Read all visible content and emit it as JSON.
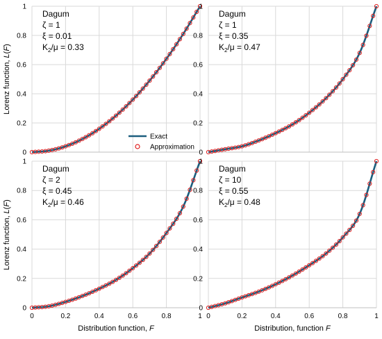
{
  "colors": {
    "exact": "#1b5e7e",
    "approx": "#e02020",
    "grid": "#d9d9d9"
  },
  "legend": {
    "exact": "Exact",
    "approx": "Approximation",
    "placement": "bottom-right of top-left panel"
  },
  "axes": {
    "ylabel": "Lorenz function, L(F)",
    "xlabel_left": "Distribution function, F",
    "xlabel_right": "Distribution, function F",
    "xticks": [
      "0",
      "0.2",
      "0.4",
      "0.6",
      "0.8",
      "1"
    ],
    "yticks": [
      "0",
      "0.2",
      "0.4",
      "0.6",
      "0.8",
      "1"
    ],
    "xlim": [
      0,
      1
    ],
    "ylim": [
      0,
      1
    ]
  },
  "chart_data": [
    {
      "type": "line",
      "title": "Dagum",
      "annotations": [
        "Dagum",
        "ζ = 1",
        "ξ = 0.01",
        "K2/μ = 0.33"
      ],
      "zeta": 1,
      "xi": 0.01,
      "series": [
        {
          "name": "Exact",
          "x": [
            0,
            0.1,
            0.2,
            0.3,
            0.4,
            0.5,
            0.6,
            0.7,
            0.8,
            0.9,
            1
          ],
          "y": [
            0,
            0.01,
            0.04,
            0.09,
            0.16,
            0.25,
            0.36,
            0.49,
            0.64,
            0.81,
            1
          ]
        },
        {
          "name": "Approximation",
          "x": [
            0,
            0.1,
            0.2,
            0.3,
            0.4,
            0.5,
            0.6,
            0.7,
            0.8,
            0.9,
            1
          ],
          "y": [
            0,
            0.01,
            0.04,
            0.09,
            0.16,
            0.25,
            0.36,
            0.49,
            0.64,
            0.81,
            1
          ]
        }
      ]
    },
    {
      "type": "line",
      "title": "Dagum",
      "annotations": [
        "Dagum",
        "ζ = 1",
        "ξ = 0.35",
        "K2/μ = 0.47"
      ],
      "zeta": 1,
      "xi": 0.35,
      "series": [
        {
          "name": "Exact",
          "x": [
            0,
            0.1,
            0.2,
            0.3,
            0.4,
            0.5,
            0.6,
            0.7,
            0.8,
            0.9,
            1
          ],
          "y": [
            0,
            0.02,
            0.04,
            0.08,
            0.13,
            0.19,
            0.27,
            0.37,
            0.5,
            0.68,
            1
          ]
        },
        {
          "name": "Approximation",
          "x": [
            0,
            0.1,
            0.2,
            0.3,
            0.4,
            0.5,
            0.6,
            0.7,
            0.8,
            0.9,
            1
          ],
          "y": [
            0,
            0.02,
            0.04,
            0.08,
            0.13,
            0.19,
            0.27,
            0.37,
            0.5,
            0.68,
            1
          ]
        }
      ]
    },
    {
      "type": "line",
      "title": "Dagum",
      "annotations": [
        "Dagum",
        "ζ = 2",
        "ξ = 0.45",
        "K2/μ = 0.46"
      ],
      "zeta": 2,
      "xi": 0.45,
      "series": [
        {
          "name": "Exact",
          "x": [
            0,
            0.1,
            0.2,
            0.3,
            0.4,
            0.5,
            0.6,
            0.7,
            0.8,
            0.9,
            1
          ],
          "y": [
            0,
            0.01,
            0.04,
            0.08,
            0.13,
            0.19,
            0.27,
            0.37,
            0.51,
            0.69,
            1
          ]
        },
        {
          "name": "Approximation",
          "x": [
            0,
            0.1,
            0.2,
            0.3,
            0.4,
            0.5,
            0.6,
            0.7,
            0.8,
            0.9,
            1
          ],
          "y": [
            0,
            0.01,
            0.04,
            0.08,
            0.13,
            0.19,
            0.27,
            0.37,
            0.51,
            0.69,
            1
          ]
        }
      ]
    },
    {
      "type": "line",
      "title": "Dagum",
      "annotations": [
        "Dagum",
        "ζ = 10",
        "ξ = 0.55",
        "K2/μ = 0.48"
      ],
      "zeta": 10,
      "xi": 0.55,
      "series": [
        {
          "name": "Exact",
          "x": [
            0,
            0.1,
            0.2,
            0.3,
            0.4,
            0.5,
            0.6,
            0.7,
            0.8,
            0.9,
            1
          ],
          "y": [
            0,
            0.03,
            0.07,
            0.11,
            0.16,
            0.22,
            0.29,
            0.37,
            0.48,
            0.64,
            1
          ]
        },
        {
          "name": "Approximation",
          "x": [
            0,
            0.1,
            0.2,
            0.3,
            0.4,
            0.5,
            0.6,
            0.7,
            0.8,
            0.9,
            1
          ],
          "y": [
            0,
            0.03,
            0.07,
            0.11,
            0.16,
            0.22,
            0.29,
            0.37,
            0.48,
            0.64,
            1
          ]
        }
      ]
    }
  ]
}
